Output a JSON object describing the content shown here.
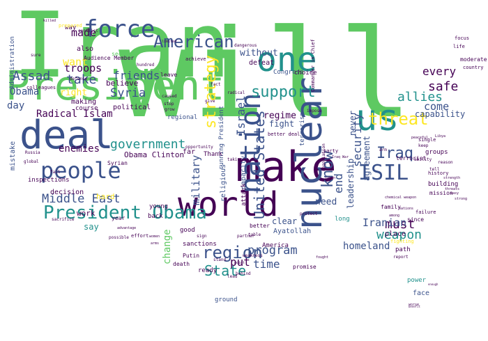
{
  "palette": {
    "background": "#ffffff",
    "dark_purple": "#440154",
    "indigo": "#3b528b",
    "teal": "#21918c",
    "green": "#5ec962",
    "yellow": "#fde725"
  },
  "words": [
    {
      "text": "Iran",
      "weight": 100,
      "color": "#5ec962"
    },
    {
      "text": "will",
      "weight": 98,
      "color": "#5ec962"
    },
    {
      "text": "President",
      "weight": 55,
      "color": "#5ec962"
    },
    {
      "text": "deal",
      "weight": 45,
      "color": "#3b528b"
    },
    {
      "text": "make",
      "weight": 45,
      "color": "#440154"
    },
    {
      "text": "world",
      "weight": 40,
      "color": "#440154"
    },
    {
      "text": "nuclear",
      "weight": 40,
      "color": "#3b528b"
    },
    {
      "text": "one",
      "weight": 38,
      "color": "#21918c"
    },
    {
      "text": "us",
      "weight": 38,
      "color": "#21918c"
    },
    {
      "text": "nation",
      "weight": 30,
      "color": "#3b528b"
    },
    {
      "text": "force",
      "weight": 28,
      "color": "#3b528b"
    },
    {
      "text": "people",
      "weight": 28,
      "color": "#3b528b"
    },
    {
      "text": "ISIL",
      "weight": 26,
      "color": "#3b528b"
    },
    {
      "text": "President Obama",
      "weight": 22,
      "color": "#21918c"
    },
    {
      "text": "threat",
      "weight": 22,
      "color": "#fde725"
    },
    {
      "text": "American",
      "weight": 21,
      "color": "#3b528b"
    },
    {
      "text": "region",
      "weight": 20,
      "color": "#3b528b"
    },
    {
      "text": "support",
      "weight": 20,
      "color": "#21918c"
    },
    {
      "text": "know",
      "weight": 20,
      "color": "#3b528b"
    },
    {
      "text": "Iraq",
      "weight": 20,
      "color": "#3b528b"
    },
    {
      "text": "United States",
      "weight": 17,
      "color": "#3b528b"
    },
    {
      "text": "State",
      "weight": 17,
      "color": "#21918c"
    },
    {
      "text": "strategy",
      "weight": 16,
      "color": "#fde725"
    },
    {
      "text": "Assad",
      "weight": 16,
      "color": "#3b528b"
    },
    {
      "text": "government",
      "weight": 15,
      "color": "#21918c"
    },
    {
      "text": "take",
      "weight": 15,
      "color": "#3b528b"
    },
    {
      "text": "Syria",
      "weight": 14,
      "color": "#3b528b"
    },
    {
      "text": "Middle East",
      "weight": 14,
      "color": "#3b528b"
    },
    {
      "text": "program",
      "weight": 14,
      "color": "#3b528b"
    },
    {
      "text": "weapon",
      "weight": 14,
      "color": "#21918c"
    },
    {
      "text": "must",
      "weight": 14,
      "color": "#440154"
    },
    {
      "text": "allies",
      "weight": 14,
      "color": "#21918c"
    },
    {
      "text": "safe",
      "weight": 14,
      "color": "#440154"
    },
    {
      "text": "time",
      "weight": 14,
      "color": "#3b528b"
    },
    {
      "text": "Israel",
      "weight": 13,
      "color": "#3b528b"
    },
    {
      "text": "security",
      "weight": 13,
      "color": "#3b528b"
    },
    {
      "text": "end",
      "weight": 13,
      "color": "#3b528b"
    },
    {
      "text": "military",
      "weight": 13,
      "color": "#3b528b"
    },
    {
      "text": "made",
      "weight": 13,
      "color": "#440154"
    },
    {
      "text": "troops",
      "weight": 13,
      "color": "#440154"
    },
    {
      "text": "friends",
      "weight": 13,
      "color": "#3b528b"
    },
    {
      "text": "Radical Islam",
      "weight": 12,
      "color": "#440154"
    },
    {
      "text": "put",
      "weight": 12,
      "color": "#440154"
    },
    {
      "text": "every",
      "weight": 12,
      "color": "#440154"
    },
    {
      "text": "homeland",
      "weight": 12,
      "color": "#3b528b"
    },
    {
      "text": "Iranian",
      "weight": 12,
      "color": "#3b528b"
    },
    {
      "text": "want",
      "weight": 12,
      "color": "#fde725"
    },
    {
      "text": "Obama",
      "weight": 12,
      "color": "#3b528b"
    },
    {
      "text": "change",
      "weight": 12,
      "color": "#5ec962"
    },
    {
      "text": "enemies",
      "weight": 11,
      "color": "#440154"
    },
    {
      "text": "come",
      "weight": 11,
      "color": "#3b528b"
    },
    {
      "text": "capability",
      "weight": 11,
      "color": "#3b528b"
    },
    {
      "text": "leadership",
      "weight": 11,
      "color": "#3b528b"
    },
    {
      "text": "agreement",
      "weight": 11,
      "color": "#3b528b"
    },
    {
      "text": "regime",
      "weight": 10,
      "color": "#440154"
    },
    {
      "text": "fight",
      "weight": 10,
      "color": "#3b528b"
    },
    {
      "text": "never",
      "weight": 10,
      "color": "#3b528b"
    },
    {
      "text": "without",
      "weight": 10,
      "color": "#3b528b"
    },
    {
      "text": "need",
      "weight": 10,
      "color": "#3b528b"
    },
    {
      "text": "clear",
      "weight": 10,
      "color": "#3b528b"
    },
    {
      "text": "day",
      "weight": 10,
      "color": "#3b528b"
    },
    {
      "text": "right",
      "weight": 10,
      "color": "#fde725"
    },
    {
      "text": "believe",
      "weight": 9,
      "color": "#440154"
    },
    {
      "text": "political",
      "weight": 9,
      "color": "#440154"
    },
    {
      "text": "Obama Clinton",
      "weight": 9,
      "color": "#440154"
    },
    {
      "text": "regional",
      "weight": 8,
      "color": "#3b528b"
    },
    {
      "text": "capacity",
      "weight": 9,
      "color": "#3b528b"
    },
    {
      "text": "religious",
      "weight": 9,
      "color": "#3b528b"
    },
    {
      "text": "attack",
      "weight": 8,
      "color": "#440154"
    },
    {
      "text": "terrorism",
      "weight": 8,
      "color": "#3b528b"
    },
    {
      "text": "defeat",
      "weight": 8,
      "color": "#440154"
    },
    {
      "text": "Congress",
      "weight": 8,
      "color": "#3b528b"
    },
    {
      "text": "choice",
      "weight": 8,
      "color": "#440154"
    },
    {
      "text": "running President",
      "weight": 8,
      "color": "#3b528b"
    },
    {
      "text": "sanctions",
      "weight": 8,
      "color": "#440154"
    },
    {
      "text": "Ayatollah",
      "weight": 8,
      "color": "#3b528b"
    },
    {
      "text": "place",
      "weight": 8,
      "color": "#440154"
    },
    {
      "text": "path",
      "weight": 7,
      "color": "#440154"
    },
    {
      "text": "work",
      "weight": 8,
      "color": "#440154"
    },
    {
      "text": "hard",
      "weight": 8,
      "color": "#fde725"
    },
    {
      "text": "decision",
      "weight": 8,
      "color": "#440154"
    },
    {
      "text": "mistake",
      "weight": 8,
      "color": "#3b528b"
    },
    {
      "text": "inspections",
      "weight": 7,
      "color": "#440154"
    },
    {
      "text": "say",
      "weight": 8,
      "color": "#21918c"
    },
    {
      "text": "making",
      "weight": 8,
      "color": "#440154"
    },
    {
      "text": "course",
      "weight": 7,
      "color": "#440154"
    },
    {
      "text": "Thank",
      "weight": 7,
      "color": "#440154"
    },
    {
      "text": "far",
      "weight": 8,
      "color": "#440154"
    },
    {
      "text": "year",
      "weight": 7,
      "color": "#440154"
    },
    {
      "text": "back",
      "weight": 8,
      "color": "#440154"
    },
    {
      "text": "good",
      "weight": 7,
      "color": "#440154"
    },
    {
      "text": "Syrian",
      "weight": 6,
      "color": "#440154"
    },
    {
      "text": "young",
      "weight": 7,
      "color": "#440154"
    },
    {
      "text": "groups",
      "weight": 7,
      "color": "#440154"
    },
    {
      "text": "building",
      "weight": 7,
      "color": "#440154"
    },
    {
      "text": "mission",
      "weight": 6,
      "color": "#440154"
    },
    {
      "text": "family",
      "weight": 6,
      "color": "#440154"
    },
    {
      "text": "power",
      "weight": 7,
      "color": "#21918c"
    },
    {
      "text": "face",
      "weight": 8,
      "color": "#3b528b"
    },
    {
      "text": "ground",
      "weight": 7,
      "color": "#3b528b"
    },
    {
      "text": "ready",
      "weight": 7,
      "color": "#440154"
    },
    {
      "text": "America",
      "weight": 7,
      "color": "#440154"
    },
    {
      "text": "promise",
      "weight": 6,
      "color": "#440154"
    },
    {
      "text": "death",
      "weight": 6,
      "color": "#440154"
    },
    {
      "text": "Putin",
      "weight": 6,
      "color": "#440154"
    },
    {
      "text": "Administration",
      "weight": 7,
      "color": "#3b528b"
    },
    {
      "text": "Audience Member",
      "weight": 6,
      "color": "#440154"
    },
    {
      "text": "conflict",
      "weight": 5,
      "color": "#440154"
    },
    {
      "text": "way",
      "weight": 6,
      "color": "#440154"
    },
    {
      "text": "also",
      "weight": 7,
      "color": "#440154"
    },
    {
      "text": "secure",
      "weight": 6,
      "color": "#5ec962"
    },
    {
      "text": "leave",
      "weight": 6,
      "color": "#440154"
    },
    {
      "text": "achieve",
      "weight": 6,
      "color": "#440154"
    },
    {
      "text": "moderate",
      "weight": 6,
      "color": "#440154"
    },
    {
      "text": "country",
      "weight": 6,
      "color": "#440154"
    },
    {
      "text": "life",
      "weight": 5,
      "color": "#440154"
    },
    {
      "text": "focus",
      "weight": 5,
      "color": "#440154"
    },
    {
      "text": "long",
      "weight": 7,
      "color": "#21918c"
    },
    {
      "text": "since",
      "weight": 6,
      "color": "#440154"
    },
    {
      "text": "failure",
      "weight": 6,
      "color": "#440154"
    },
    {
      "text": "ability",
      "weight": 5,
      "color": "#440154"
    },
    {
      "text": "negotiation",
      "weight": 5,
      "color": "#440154"
    },
    {
      "text": "terrorist",
      "weight": 6,
      "color": "#440154"
    },
    {
      "text": "partner",
      "weight": 5,
      "color": "#440154"
    },
    {
      "text": "better",
      "weight": 6,
      "color": "#440154"
    },
    {
      "text": "better deal",
      "weight": 5,
      "color": "#440154"
    },
    {
      "text": "protect",
      "weight": 5,
      "color": "#440154"
    },
    {
      "text": "history",
      "weight": 5,
      "color": "#440154"
    },
    {
      "text": "party",
      "weight": 5,
      "color": "#440154"
    },
    {
      "text": "fighting",
      "weight": 5,
      "color": "#fde725"
    },
    {
      "text": "possible",
      "weight": 5,
      "color": "#440154"
    },
    {
      "text": "effort",
      "weight": 5,
      "color": "#440154"
    },
    {
      "text": "global",
      "weight": 5,
      "color": "#440154"
    },
    {
      "text": "Russia",
      "weight": 5,
      "color": "#440154"
    },
    {
      "text": "single",
      "weight": 5,
      "color": "#440154"
    },
    {
      "text": "report",
      "weight": 5,
      "color": "#440154"
    },
    {
      "text": "arm",
      "weight": 5,
      "color": "#440154"
    },
    {
      "text": "lead",
      "weight": 5,
      "color": "#440154"
    },
    {
      "text": "weakness",
      "weight": 5,
      "color": "#440154"
    },
    {
      "text": "stand",
      "weight": 5,
      "color": "#440154"
    },
    {
      "text": "impose",
      "weight": 5,
      "color": "#440154"
    },
    {
      "text": "dangerous",
      "weight": 5,
      "color": "#440154"
    },
    {
      "text": "peaceful",
      "weight": 4,
      "color": "#440154"
    },
    {
      "text": "fought",
      "weight": 4,
      "color": "#440154"
    },
    {
      "text": "colleagues",
      "weight": 5,
      "color": "#440154"
    },
    {
      "text": "defense",
      "weight": 5,
      "color": "#440154"
    },
    {
      "text": "hundred",
      "weight": 4,
      "color": "#440154"
    },
    {
      "text": "prepared",
      "weight": 5,
      "color": "#fde725"
    },
    {
      "text": "sure",
      "weight": 5,
      "color": "#440154"
    },
    {
      "text": "caused",
      "weight": 4,
      "color": "#440154"
    },
    {
      "text": "stop",
      "weight": 4,
      "color": "#440154"
    },
    {
      "text": "sacrifice",
      "weight": 4,
      "color": "#440154"
    },
    {
      "text": "women",
      "weight": 4,
      "color": "#440154"
    },
    {
      "text": "behind",
      "weight": 4,
      "color": "#440154"
    },
    {
      "text": "arms",
      "weight": 4,
      "color": "#440154"
    },
    {
      "text": "radical",
      "weight": 4,
      "color": "#440154"
    },
    {
      "text": "give",
      "weight": 4,
      "color": "#440154"
    },
    {
      "text": "grow",
      "weight": 4,
      "color": "#440154"
    },
    {
      "text": "table",
      "weight": 4,
      "color": "#440154"
    },
    {
      "text": "fact",
      "weight": 4,
      "color": "#440154"
    },
    {
      "text": "opportunity",
      "weight": 4,
      "color": "#440154"
    },
    {
      "text": "taking",
      "weight": 4,
      "color": "#440154"
    },
    {
      "text": "Commander in Chief",
      "weight": 4,
      "color": "#440154"
    },
    {
      "text": "limited",
      "weight": 4,
      "color": "#440154"
    },
    {
      "text": "sign",
      "weight": 4,
      "color": "#440154"
    },
    {
      "text": "keep",
      "weight": 4,
      "color": "#440154"
    },
    {
      "text": "tell",
      "weight": 4,
      "color": "#440154"
    },
    {
      "text": "reason",
      "weight": 4,
      "color": "#440154"
    },
    {
      "text": "among",
      "weight": 4,
      "color": "#440154"
    },
    {
      "text": "nations",
      "weight": 4,
      "color": "#440154"
    },
    {
      "text": "killed",
      "weight": 3,
      "color": "#440154"
    },
    {
      "text": "fail",
      "weight": 3,
      "color": "#440154"
    },
    {
      "text": "easy",
      "weight": 3,
      "color": "#440154"
    },
    {
      "text": "strong",
      "weight": 3,
      "color": "#440154"
    },
    {
      "text": "taken",
      "weight": 3,
      "color": "#440154"
    },
    {
      "text": "advantage",
      "weight": 3,
      "color": "#440154"
    },
    {
      "text": "worse",
      "weight": 3,
      "color": "#440154"
    },
    {
      "text": "point",
      "weight": 3,
      "color": "#440154"
    },
    {
      "text": "strength",
      "weight": 3,
      "color": "#440154"
    },
    {
      "text": "threats",
      "weight": 3,
      "color": "#440154"
    },
    {
      "text": "chemical weapon",
      "weight": 3,
      "color": "#440154"
    },
    {
      "text": "Iraq War",
      "weight": 3,
      "color": "#440154"
    },
    {
      "text": "Libya",
      "weight": 3,
      "color": "#440154"
    },
    {
      "text": "benefit",
      "weight": 3,
      "color": "#440154"
    },
    {
      "text": "enough",
      "weight": 3,
      "color": "#440154"
    }
  ]
}
